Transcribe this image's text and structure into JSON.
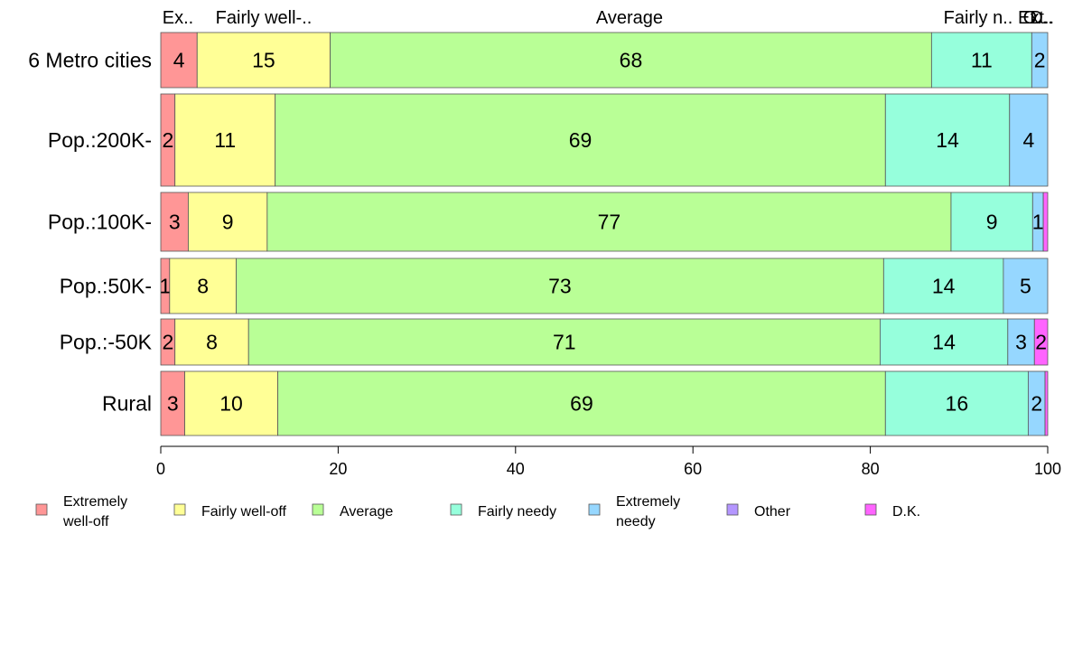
{
  "chart_data": {
    "type": "bar",
    "orientation": "horizontal",
    "stacked": true,
    "categories": [
      "6 Metro cities",
      "Pop.:200K-",
      "Pop.:100K-",
      "Pop.:50K-",
      "Pop.:-50K",
      "Rural"
    ],
    "top_labels": [
      "Ex..",
      "Fairly well-..",
      "Average",
      "Fairly n..",
      "Ext..",
      "O..",
      "D.."
    ],
    "series": [
      {
        "name": "Extremely well-off",
        "legend_lines": [
          "Extremely",
          "well-off"
        ],
        "color": "#FF9696",
        "values": [
          4.1,
          1.6,
          3.1,
          1.0,
          1.6,
          2.7
        ],
        "labels": [
          "4",
          "2",
          "3",
          "1",
          "2",
          "3"
        ]
      },
      {
        "name": "Fairly well-off",
        "legend_lines": [
          "Fairly well-off"
        ],
        "color": "#FFFF96",
        "values": [
          15.0,
          11.3,
          8.9,
          7.5,
          8.3,
          10.5
        ],
        "labels": [
          "15",
          "11",
          "9",
          "8",
          "8",
          "10"
        ]
      },
      {
        "name": "Average",
        "legend_lines": [
          "Average"
        ],
        "color": "#B9FF96",
        "values": [
          67.8,
          68.8,
          77.1,
          73.0,
          71.2,
          68.5
        ],
        "labels": [
          "68",
          "69",
          "77",
          "73",
          "71",
          "69"
        ]
      },
      {
        "name": "Fairly needy",
        "legend_lines": [
          "Fairly needy"
        ],
        "color": "#96FFDC",
        "values": [
          11.3,
          14.0,
          9.2,
          13.5,
          14.4,
          16.1
        ],
        "labels": [
          "11",
          "14",
          "9",
          "14",
          "14",
          "16"
        ]
      },
      {
        "name": "Extremely needy",
        "legend_lines": [
          "Extremely",
          "needy"
        ],
        "color": "#96D7FF",
        "values": [
          1.8,
          4.3,
          1.2,
          5.0,
          3.0,
          1.9
        ],
        "labels": [
          "2",
          "4",
          "1",
          "5",
          "3",
          "2"
        ]
      },
      {
        "name": "Other",
        "legend_lines": [
          "Other"
        ],
        "color": "#B496FF",
        "values": [
          0,
          0,
          0,
          0,
          0,
          0
        ],
        "labels": [
          "",
          "",
          "",
          "",
          "",
          ""
        ]
      },
      {
        "name": "D.K.",
        "legend_lines": [
          "D.K."
        ],
        "color": "#FF64FF",
        "values": [
          0,
          0,
          0.5,
          0,
          1.5,
          0.3
        ],
        "labels": [
          "",
          "",
          "",
          "",
          "2",
          ""
        ]
      }
    ],
    "xlim": [
      0,
      100
    ],
    "x_ticks": [
      0,
      20,
      40,
      60,
      80,
      100
    ],
    "xlabel": "",
    "ylabel": "",
    "title": "",
    "grid": false,
    "legend_position": "bottom"
  }
}
